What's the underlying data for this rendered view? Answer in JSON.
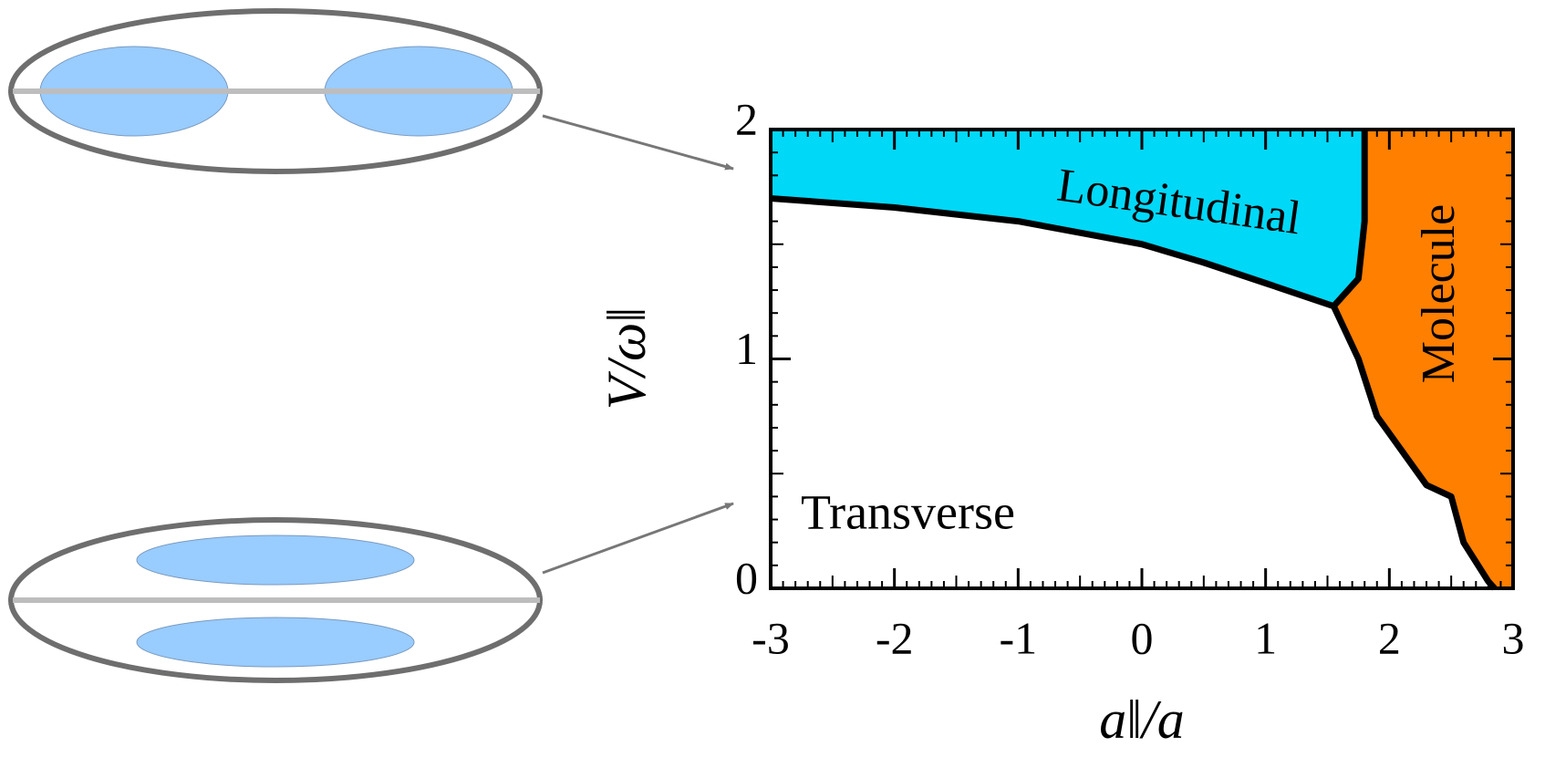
{
  "chart_data": {
    "type": "phase-diagram",
    "xlabel": "a‖/a",
    "ylabel": "V/ω‖",
    "xlim": [
      -3,
      3
    ],
    "ylim": [
      0,
      2
    ],
    "xticks": [
      -3,
      -2,
      -1,
      0,
      1,
      2,
      3
    ],
    "yticks": [
      0,
      1,
      2
    ],
    "minor_ticks": 10,
    "series": [
      {
        "color": "#000000",
        "x": [
          -3,
          -2,
          -1,
          0,
          0.5,
          1,
          1.55
        ],
        "y": [
          1.7,
          1.66,
          1.6,
          1.5,
          1.42,
          1.33,
          1.23
        ]
      },
      {
        "color": "#000000",
        "x": [
          1.55,
          1.75,
          1.8,
          1.8
        ],
        "y": [
          1.23,
          1.35,
          1.6,
          2
        ]
      },
      {
        "color": "#000000",
        "x": [
          1.55,
          1.75,
          1.9,
          2.1,
          2.3,
          2.5,
          2.6,
          2.8,
          2.85
        ],
        "y": [
          1.23,
          1.0,
          0.75,
          0.6,
          0.45,
          0.4,
          0.2,
          0.03,
          0
        ]
      }
    ],
    "regions": [
      {
        "label": "Longitudinal",
        "color": "#00d8f8"
      },
      {
        "label": "Molecule",
        "color": "#ff7f00"
      },
      {
        "label": "Transverse"
      }
    ]
  }
}
